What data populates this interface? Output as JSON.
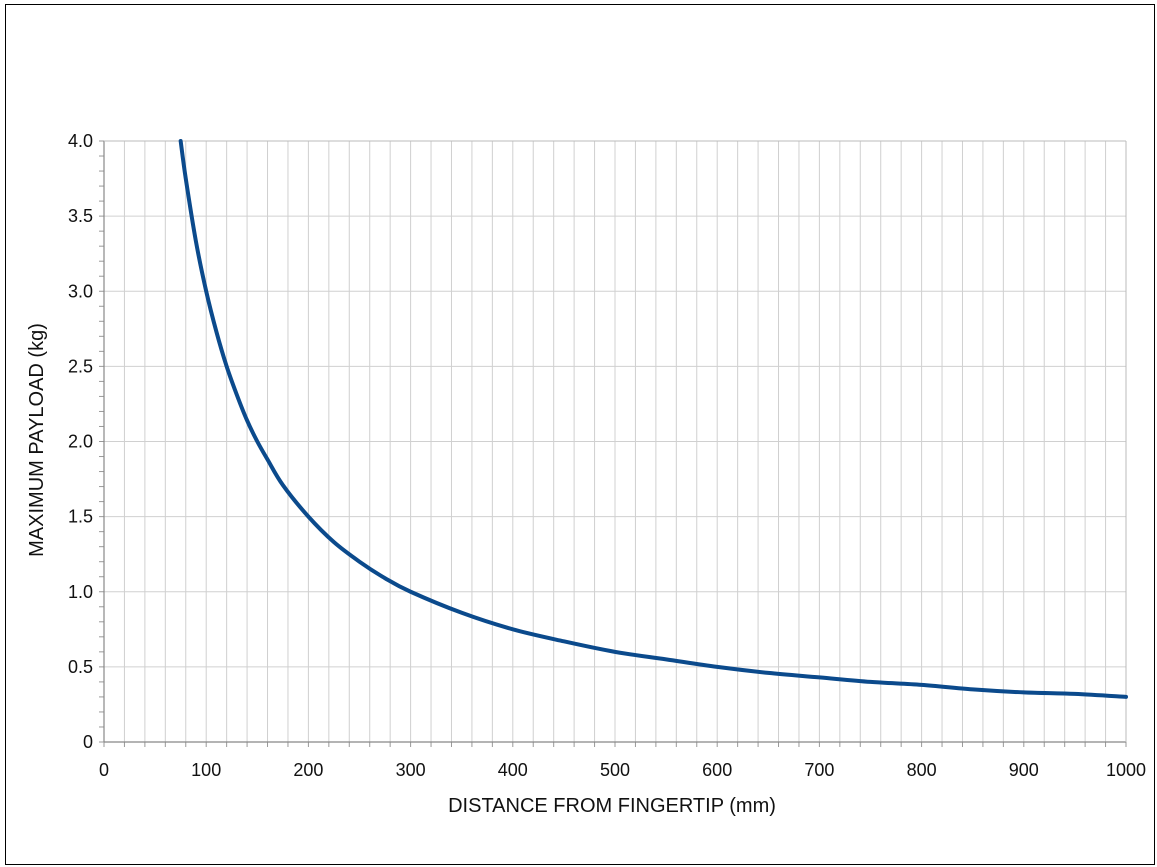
{
  "chart_data": {
    "type": "line",
    "title": "",
    "xlabel": "DISTANCE FROM FINGERTIP (mm)",
    "ylabel": "MAXIMUM PAYLOAD (kg)",
    "xlim": [
      0,
      1000
    ],
    "ylim": [
      0,
      4.0
    ],
    "x_ticks": [
      0,
      100,
      200,
      300,
      400,
      500,
      600,
      700,
      800,
      900,
      1000
    ],
    "x_tick_labels": [
      "0",
      "100",
      "200",
      "300",
      "400",
      "500",
      "600",
      "700",
      "800",
      "900",
      "1000"
    ],
    "y_ticks": [
      0,
      0.5,
      1.0,
      1.5,
      2.0,
      2.5,
      3.0,
      3.5,
      4.0
    ],
    "y_tick_labels": [
      "0",
      "0.5",
      "1.0",
      "1.5",
      "2.0",
      "2.5",
      "3.0",
      "3.5",
      "4.0"
    ],
    "x_minor_step": 20,
    "y_minor_step": 0.1,
    "grid": true,
    "legend": "none",
    "line_color": "#0b4a8c",
    "grid_color": "#d0d0d0",
    "series": [
      {
        "x": [
          75,
          80,
          90,
          100,
          110,
          120,
          130,
          140,
          150,
          160,
          175,
          200,
          225,
          250,
          275,
          300,
          350,
          400,
          450,
          500,
          550,
          600,
          650,
          700,
          750,
          800,
          850,
          900,
          950,
          1000
        ],
        "values": [
          4.0,
          3.75,
          3.33,
          3.0,
          2.73,
          2.5,
          2.31,
          2.14,
          2.0,
          1.88,
          1.71,
          1.5,
          1.33,
          1.2,
          1.09,
          1.0,
          0.86,
          0.75,
          0.67,
          0.6,
          0.55,
          0.5,
          0.46,
          0.43,
          0.4,
          0.38,
          0.35,
          0.33,
          0.32,
          0.3
        ]
      }
    ]
  }
}
